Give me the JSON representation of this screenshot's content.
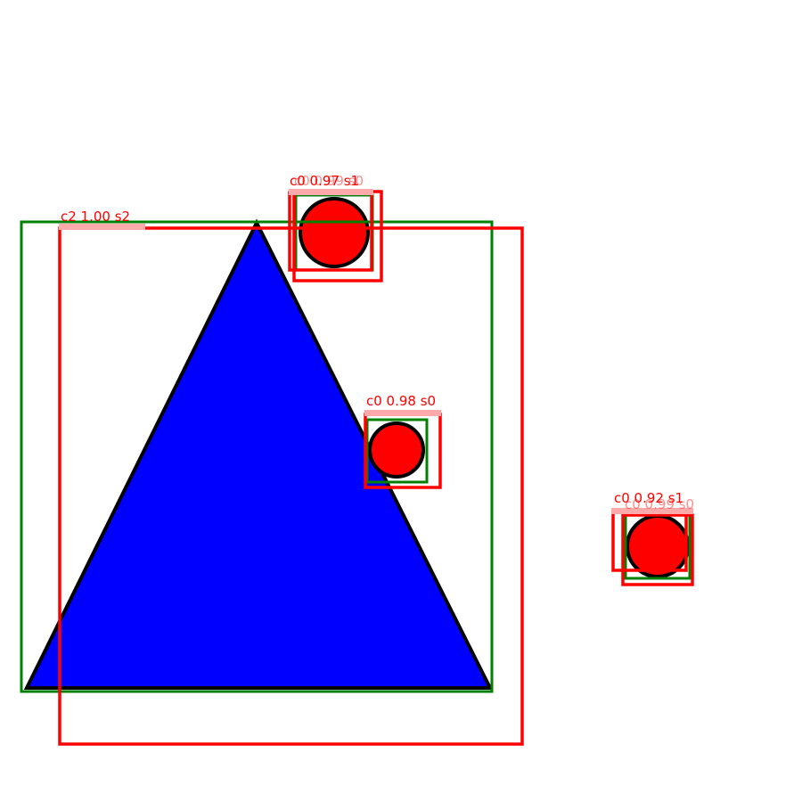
{
  "colors": {
    "background": "#ffffff",
    "triangle_fill": "#0000ff",
    "circle_fill": "#ff0000",
    "shape_outline": "#000000",
    "ground_truth_box": "#008000",
    "prediction_box": "#ff0000",
    "label_text": "#ff0000",
    "label_background": "#ffaaaa"
  },
  "shapes": [
    {
      "name": "blue-triangle",
      "kind": "triangle",
      "color": "blue"
    },
    {
      "name": "red-circle-top",
      "kind": "circle",
      "color": "red"
    },
    {
      "name": "red-circle-middle",
      "kind": "circle",
      "color": "red"
    },
    {
      "name": "red-circle-right",
      "kind": "circle",
      "color": "red"
    }
  ],
  "ground_truth_boxes": [
    {
      "name": "gt-box-triangle"
    },
    {
      "name": "gt-box-circle-top"
    },
    {
      "name": "gt-box-circle-middle"
    },
    {
      "name": "gt-box-circle-right"
    }
  ],
  "predictions": [
    {
      "name": "pred-triangle",
      "label": "c2 1.00 s2",
      "faded": false
    },
    {
      "name": "pred-circle-top-a",
      "label": "c0 0.97 s1",
      "faded": false
    },
    {
      "name": "pred-circle-top-b",
      "label": "c0 0.99 s0",
      "faded": true
    },
    {
      "name": "pred-circle-middle",
      "label": "c0 0.98 s0",
      "faded": false
    },
    {
      "name": "pred-circle-right-a",
      "label": "c0 0.92 s1",
      "faded": false
    },
    {
      "name": "pred-circle-right-b",
      "label": "c0 0.99 s0",
      "faded": true
    }
  ]
}
